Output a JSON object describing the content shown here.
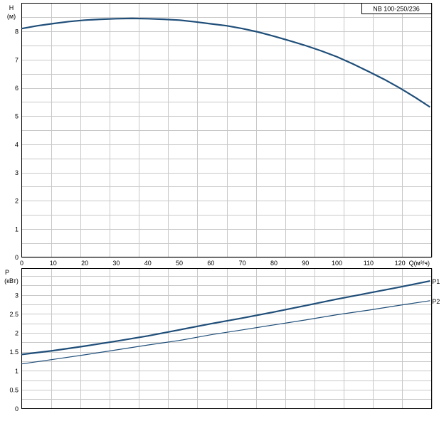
{
  "chart_data": [
    {
      "type": "line",
      "title": "",
      "legend_label": "NB 100-250/236",
      "ylabel_top": "H",
      "ylabel_unit": "(м)",
      "xlabel": "Q(м³/ч)",
      "xlim": [
        0,
        130
      ],
      "ylim": [
        0,
        9
      ],
      "xticks": [
        "0",
        "10",
        "20",
        "30",
        "40",
        "50",
        "60",
        "70",
        "80",
        "90",
        "100",
        "110",
        "120"
      ],
      "yticks": [
        "0",
        "1",
        "2",
        "3",
        "4",
        "5",
        "6",
        "7",
        "8"
      ],
      "grid": true,
      "series": [
        {
          "name": "",
          "color": "#1f4e79",
          "x": [
            0,
            5,
            10,
            15,
            20,
            25,
            30,
            35,
            40,
            45,
            50,
            55,
            60,
            65,
            70,
            75,
            80,
            85,
            90,
            95,
            100,
            105,
            110,
            115,
            120,
            125,
            129.5
          ],
          "y": [
            8.1,
            8.2,
            8.28,
            8.35,
            8.4,
            8.43,
            8.45,
            8.46,
            8.45,
            8.43,
            8.4,
            8.34,
            8.27,
            8.2,
            8.1,
            7.98,
            7.83,
            7.67,
            7.5,
            7.31,
            7.1,
            6.85,
            6.58,
            6.3,
            5.99,
            5.65,
            5.32
          ]
        }
      ]
    },
    {
      "type": "line",
      "title": "",
      "ylabel_top": "P",
      "ylabel_unit": "(кВт)",
      "xlim": [
        0,
        130
      ],
      "ylim": [
        0,
        3.7
      ],
      "yticks": [
        "0",
        "0.5",
        "1",
        "1.5",
        "2",
        "2.5",
        "3"
      ],
      "grid": true,
      "series": [
        {
          "name": "P1",
          "color": "#1f4e79",
          "x": [
            0,
            10,
            20,
            30,
            40,
            50,
            60,
            70,
            80,
            90,
            100,
            110,
            120,
            129.5
          ],
          "y": [
            1.43,
            1.53,
            1.65,
            1.78,
            1.92,
            2.08,
            2.24,
            2.39,
            2.55,
            2.72,
            2.89,
            3.05,
            3.21,
            3.37
          ]
        },
        {
          "name": "P2",
          "color": "#1f4e79",
          "x": [
            0,
            10,
            20,
            30,
            40,
            50,
            60,
            70,
            80,
            90,
            100,
            110,
            120,
            129.5
          ],
          "y": [
            1.18,
            1.3,
            1.42,
            1.55,
            1.68,
            1.8,
            1.95,
            2.08,
            2.21,
            2.34,
            2.48,
            2.6,
            2.73,
            2.85
          ]
        }
      ]
    }
  ]
}
